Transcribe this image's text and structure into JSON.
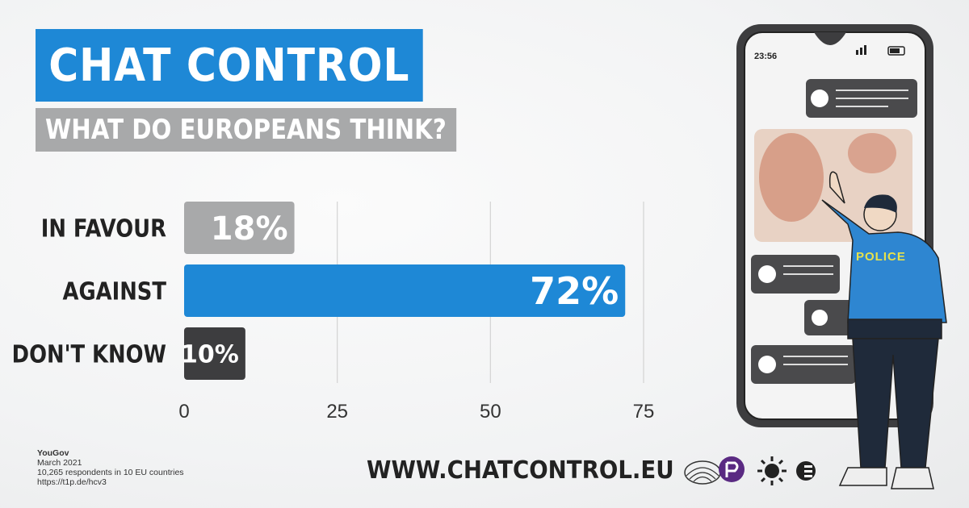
{
  "title": "CHAT CONTROL",
  "subtitle": "WHAT DO EUROPEANS THINK?",
  "chart_data": {
    "type": "bar",
    "orientation": "horizontal",
    "categories": [
      "IN FAVOUR",
      "AGAINST",
      "DON'T KNOW"
    ],
    "values": [
      18,
      72,
      10
    ],
    "value_labels": [
      "18%",
      "72%",
      "10%"
    ],
    "colors": [
      "#a8a9aa",
      "#1e88d6",
      "#3d3d3f"
    ],
    "xticks": [
      0,
      25,
      50,
      75
    ],
    "xlim": [
      0,
      75
    ],
    "grid": true,
    "legend": "none"
  },
  "source": {
    "name": "YouGov",
    "date": "March 2021",
    "respondents": "10,265 respondents in 10 EU countries",
    "link": "https://t1p.de/hcv3"
  },
  "website": "WWW.CHATCONTROL.EU",
  "phone": {
    "time": "23:56",
    "badge": "POLICE"
  },
  "icons": {
    "logos": [
      "european-parliament-logo",
      "pirate-party-logo",
      "greens-logo",
      "party-logo"
    ],
    "illustration": "phone-police-illustration"
  },
  "colors": {
    "accent": "#1e88d6",
    "grey": "#a8a9aa",
    "dark": "#3d3d3f"
  }
}
